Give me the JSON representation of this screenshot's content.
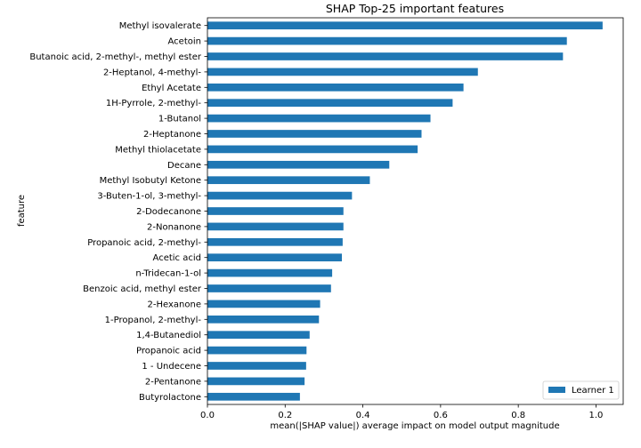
{
  "chart_data": {
    "type": "bar",
    "orientation": "horizontal",
    "title": "SHAP Top-25 important features",
    "xlabel": "mean(|SHAP value|) average impact on model output magnitude",
    "ylabel": "feature",
    "xlim": [
      0,
      1.07
    ],
    "xticks": [
      "0.0",
      "0.2",
      "0.4",
      "0.6",
      "0.8",
      "1.0"
    ],
    "xtick_values": [
      0,
      0.2,
      0.4,
      0.6,
      0.8,
      1.0
    ],
    "grid": false,
    "legend_position": "lower-right",
    "bar_color": "#1f77b4",
    "series": [
      {
        "name": "Learner 1",
        "color": "#1f77b4",
        "categories": [
          "Methyl isovalerate",
          "Acetoin",
          "Butanoic acid, 2-methyl-, methyl ester",
          "2-Heptanol, 4-methyl-",
          "Ethyl Acetate",
          "1H-Pyrrole, 2-methyl-",
          "1-Butanol",
          "2-Heptanone",
          "Methyl thiolacetate",
          "Decane",
          "Methyl Isobutyl Ketone",
          "3-Buten-1-ol, 3-methyl-",
          "2-Dodecanone",
          "2-Nonanone",
          "Propanoic acid, 2-methyl-",
          "Acetic acid",
          "n-Tridecan-1-ol",
          "Benzoic acid, methyl ester",
          "2-Hexanone",
          "1-Propanol, 2-methyl-",
          "1,4-Butanediol",
          "Propanoic acid",
          "1 - Undecene",
          "2-Pentanone",
          "Butyrolactone"
        ],
        "values": [
          1.017,
          0.925,
          0.915,
          0.696,
          0.659,
          0.631,
          0.574,
          0.551,
          0.541,
          0.468,
          0.418,
          0.372,
          0.35,
          0.35,
          0.348,
          0.346,
          0.321,
          0.318,
          0.29,
          0.287,
          0.263,
          0.255,
          0.254,
          0.25,
          0.238
        ]
      }
    ]
  }
}
